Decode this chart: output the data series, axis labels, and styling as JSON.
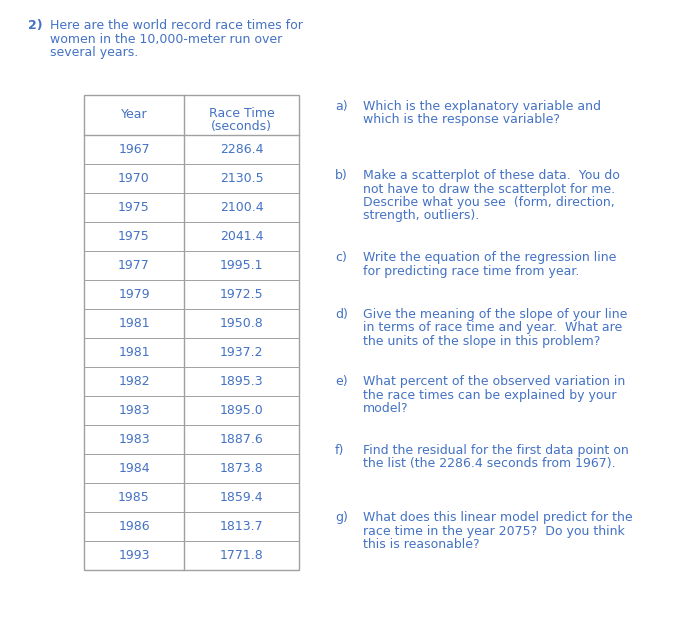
{
  "problem_number": "2)",
  "intro_text_lines": [
    "Here are the world record race times for",
    "women in the 10,000-meter run over",
    "several years."
  ],
  "table_header_col1": "Year",
  "table_header_col2": "Race Time\n(seconds)",
  "table_data": [
    [
      1967,
      "2286.4"
    ],
    [
      1970,
      "2130.5"
    ],
    [
      1975,
      "2100.4"
    ],
    [
      1975,
      "2041.4"
    ],
    [
      1977,
      "1995.1"
    ],
    [
      1979,
      "1972.5"
    ],
    [
      1981,
      "1950.8"
    ],
    [
      1981,
      "1937.2"
    ],
    [
      1982,
      "1895.3"
    ],
    [
      1983,
      "1895.0"
    ],
    [
      1983,
      "1887.6"
    ],
    [
      1984,
      "1873.8"
    ],
    [
      1985,
      "1859.4"
    ],
    [
      1986,
      "1813.7"
    ],
    [
      1993,
      "1771.8"
    ]
  ],
  "questions": [
    {
      "label": "a)",
      "lines": [
        "Which is the explanatory variable and",
        "which is the response variable?"
      ]
    },
    {
      "label": "b)",
      "lines": [
        "Make a scatterplot of these data.  You do",
        "not have to draw the scatterplot for me.",
        "Describe what you see  (form, direction,",
        "strength, outliers)."
      ]
    },
    {
      "label": "c)",
      "lines": [
        "Write the equation of the regression line",
        "for predicting race time from year."
      ]
    },
    {
      "label": "d)",
      "lines": [
        "Give the meaning of the slope of your line",
        "in terms of race time and year.  What are",
        "the units of the slope in this problem?"
      ]
    },
    {
      "label": "e)",
      "lines": [
        "What percent of the observed variation in",
        "the race times can be explained by your",
        "model?"
      ]
    },
    {
      "label": "f)",
      "lines": [
        "Find the residual for the first data point on",
        "the list (the 2286.4 seconds from 1967)."
      ]
    },
    {
      "label": "g)",
      "lines": [
        "What does this linear model predict for the",
        "race time in the year 2075?  Do you think",
        "this is reasonable?"
      ]
    }
  ],
  "text_color": "#4472C4",
  "bg_color": "#FFFFFF",
  "table_line_color": "#A0A0A0",
  "font_size": 9.0,
  "font_family": "DejaVu Sans"
}
